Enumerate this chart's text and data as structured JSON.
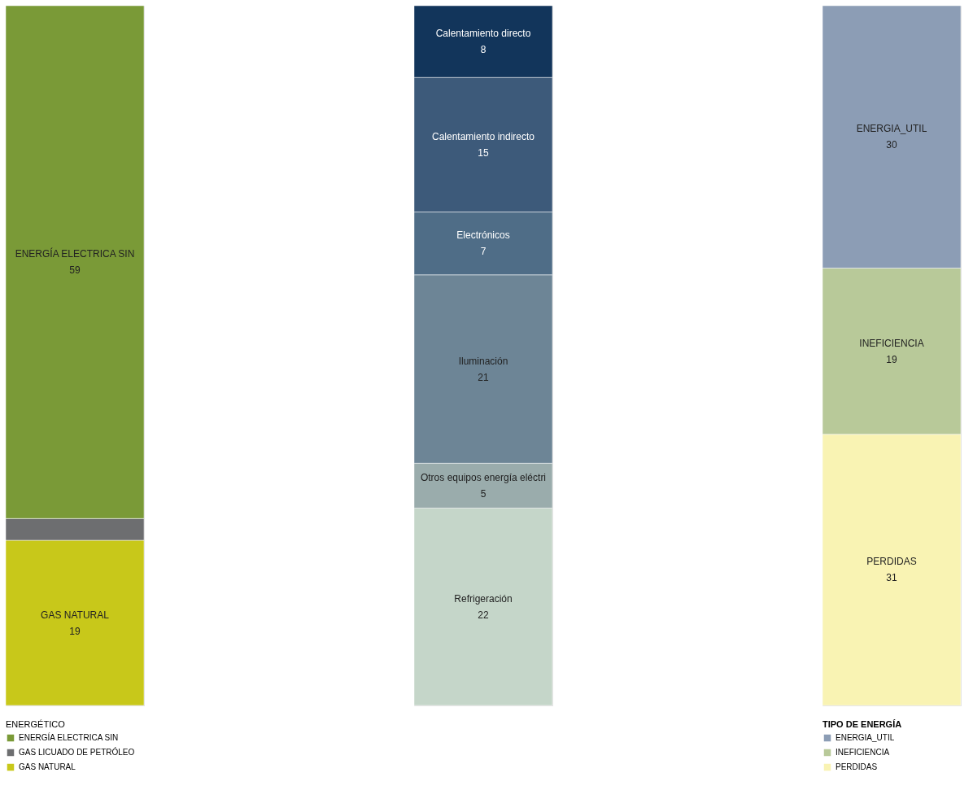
{
  "chart_data": [
    {
      "type": "bar",
      "stacked": true,
      "categories": [
        null
      ],
      "legend": "bottom",
      "legend_title": "ENERGÉTICO",
      "series": [
        {
          "name": "GAS NATURAL",
          "color": "#c8c81a",
          "values": [
            19
          ],
          "value_labels": [
            "19"
          ]
        },
        {
          "name": "GAS LICUADO DE PETRÓLEO",
          "color": "#6d6e70",
          "values": [
            2.5
          ],
          "value_labels": [
            null
          ]
        },
        {
          "name": "ENERGÍA ELECTRICA SIN",
          "color": "#7a9a37",
          "values": [
            59
          ],
          "value_labels": [
            "59"
          ]
        }
      ]
    },
    {
      "type": "bar",
      "stacked": true,
      "categories": [
        null
      ],
      "series": [
        {
          "name": "Refrigeración",
          "color": "#c5d6c9",
          "values": [
            22
          ],
          "value_labels": [
            "22"
          ]
        },
        {
          "name": "Otros equipos energía eléctri",
          "color": "#9aacac",
          "values": [
            5
          ],
          "value_labels": [
            "5"
          ]
        },
        {
          "name": "Iluminación",
          "color": "#6d8596",
          "values": [
            21
          ],
          "value_labels": [
            "21"
          ]
        },
        {
          "name": "Electrónicos",
          "color": "#4f6d87",
          "values": [
            7
          ],
          "value_labels": [
            "7"
          ]
        },
        {
          "name": "Calentamiento indirecto",
          "color": "#3d5a7a",
          "values": [
            15
          ],
          "value_labels": [
            "15"
          ]
        },
        {
          "name": "Calentamiento directo",
          "color": "#12355b",
          "values": [
            8
          ],
          "value_labels": [
            "8"
          ]
        }
      ]
    },
    {
      "type": "bar",
      "stacked": true,
      "categories": [
        null
      ],
      "legend": "bottom",
      "legend_title": "TIPO DE ENERGÍA",
      "series": [
        {
          "name": "PERDIDAS",
          "color": "#f9f3b3",
          "values": [
            31
          ],
          "value_labels": [
            "31"
          ]
        },
        {
          "name": "INEFICIENCIA",
          "color": "#b8c999",
          "values": [
            19
          ],
          "value_labels": [
            "19"
          ]
        },
        {
          "name": "ENERGIA_UTIL",
          "color": "#8c9db5",
          "values": [
            30
          ],
          "value_labels": [
            "30"
          ]
        }
      ]
    }
  ]
}
